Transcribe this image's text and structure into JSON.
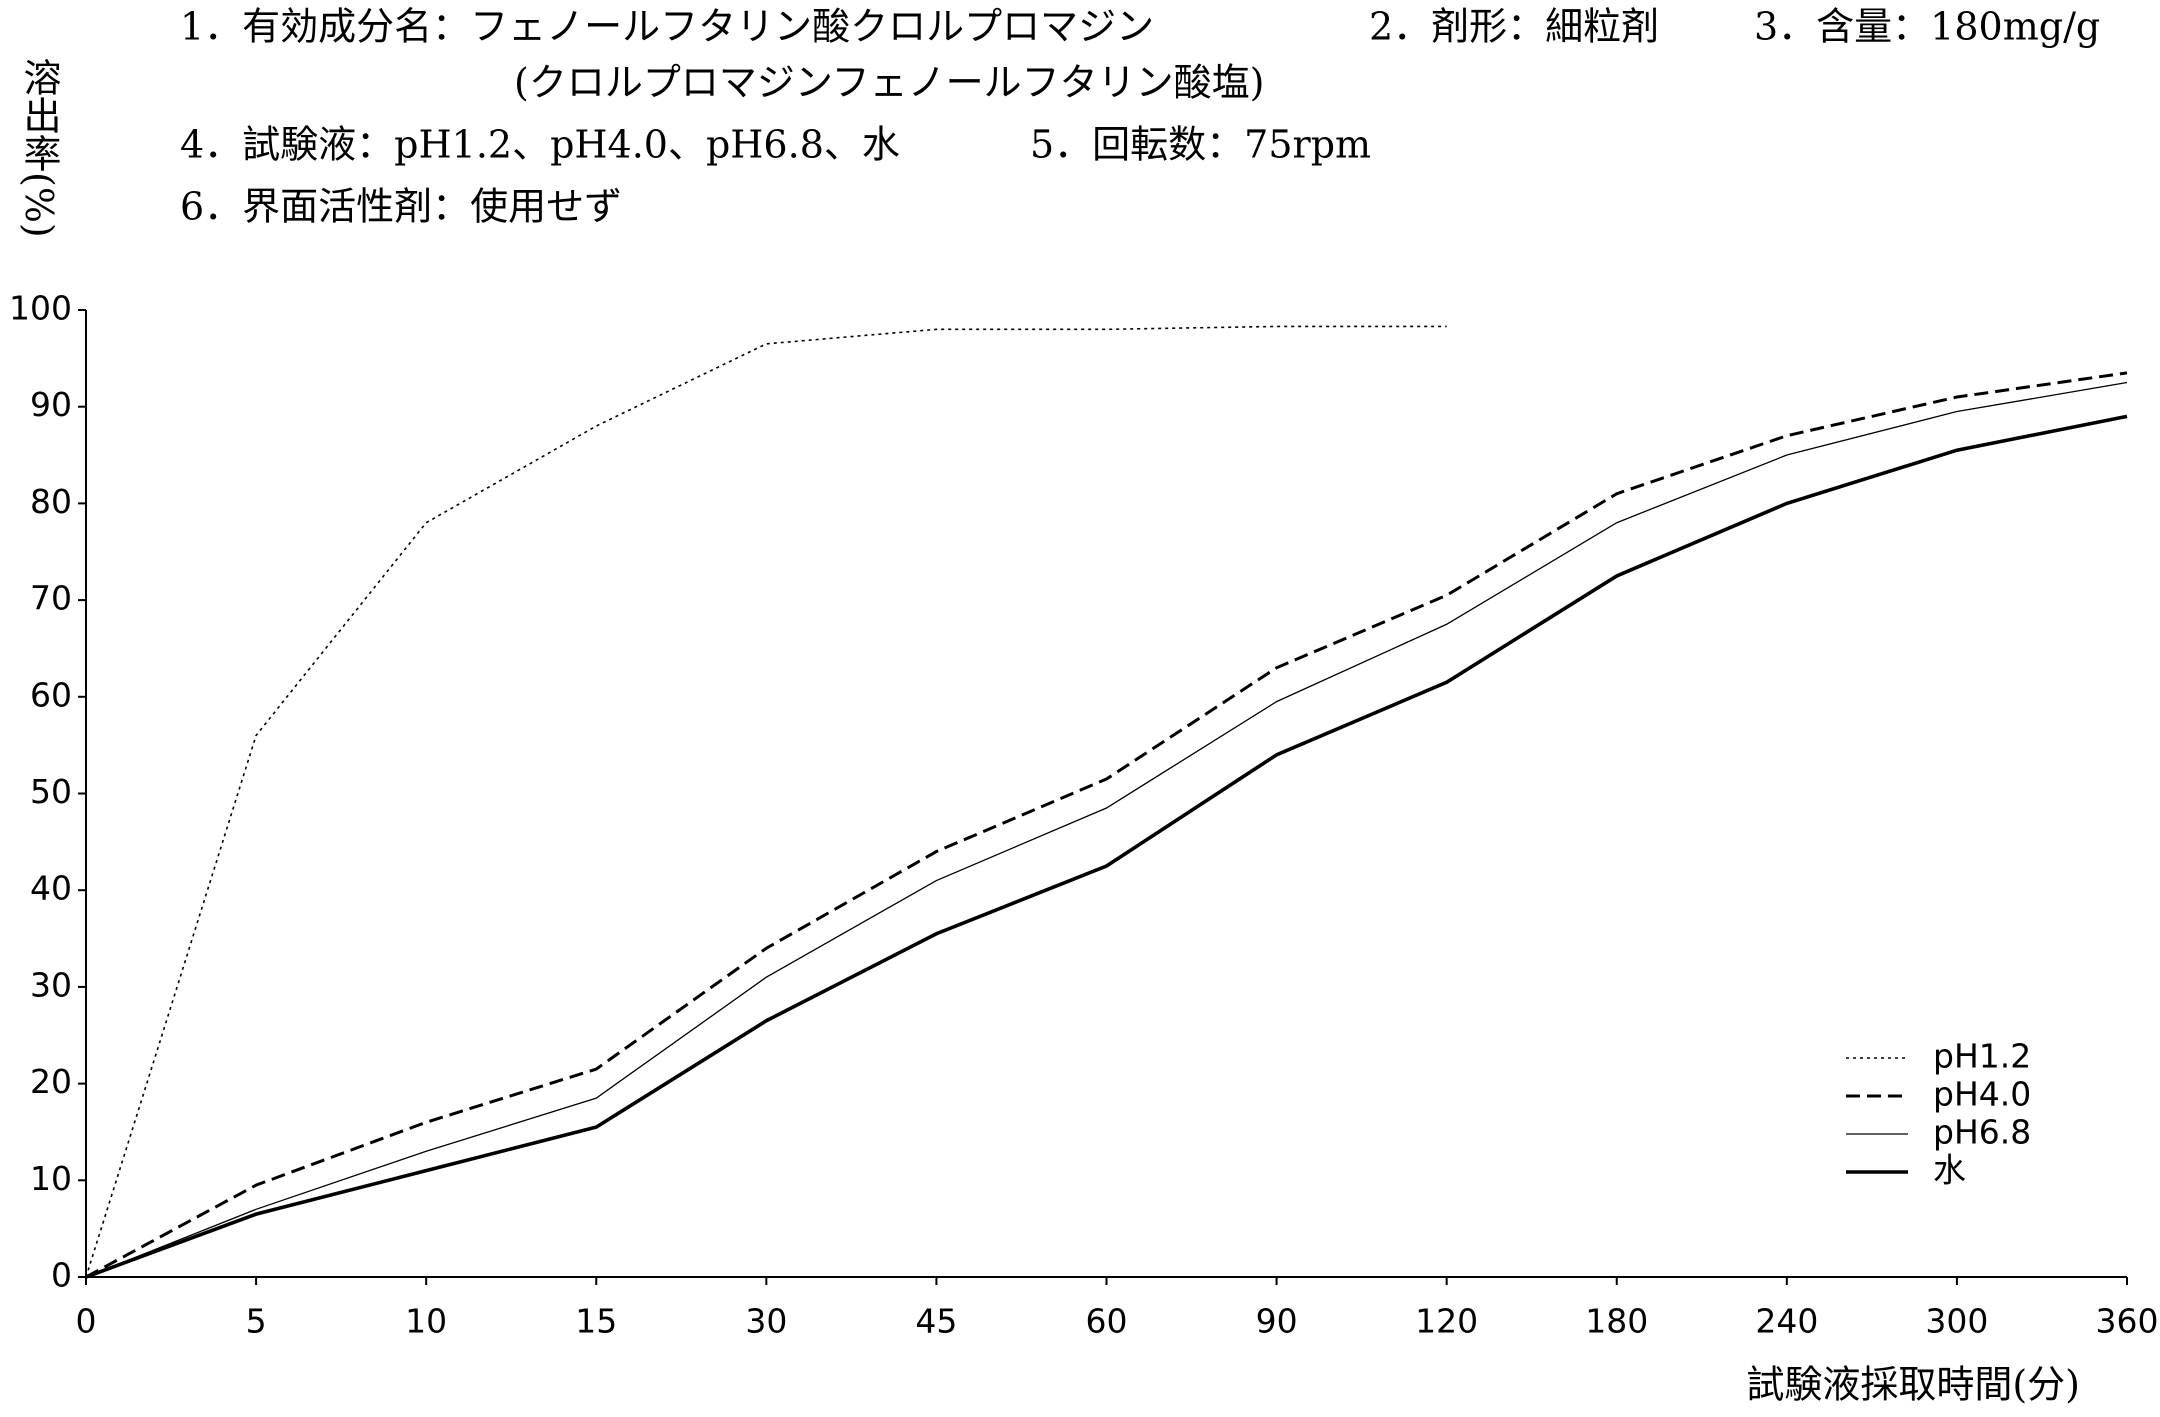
{
  "chart_data": {
    "type": "line",
    "header": [
      "1．有効成分名：フェノールフタリン酸クロルプロマジン",
      "(クロルプロマジンフェノールフタリン酸塩)",
      "2．剤形：細粒剤",
      "3．含量：180mg/g",
      "4．試験液：pH1.2、pH4.0、pH6.8、水",
      "5．回転数：75rpm",
      "6．界面活性剤：使用せず"
    ],
    "y_label": "溶出率(%)",
    "x_label": "試験液採取時間(分)",
    "categories": [
      "0",
      "5",
      "10",
      "15",
      "30",
      "45",
      "60",
      "90",
      "120",
      "180",
      "240",
      "300",
      "360"
    ],
    "series": [
      {
        "name": "pH1.2",
        "color": "#000000",
        "values": [
          0,
          56,
          78,
          88,
          96.5,
          98,
          98,
          98.3,
          98.3,
          null,
          null,
          null,
          null
        ]
      },
      {
        "name": "pH4.0",
        "color": "#000000",
        "values": [
          0,
          9.5,
          16,
          21.5,
          34,
          44,
          51.5,
          63,
          70.5,
          81,
          87,
          91,
          93.5
        ]
      },
      {
        "name": "pH6.8",
        "color": "#000000",
        "values": [
          0,
          7,
          13,
          18.5,
          31,
          41,
          48.5,
          59.5,
          67.5,
          78,
          85,
          89.5,
          92.5
        ]
      },
      {
        "name": "水",
        "color": "#000000",
        "values": [
          0,
          6.5,
          11,
          15.5,
          26.5,
          35.5,
          42.5,
          54,
          61.5,
          72.5,
          80,
          85.5,
          89
        ]
      }
    ],
    "ylim": [
      0,
      100
    ],
    "yticks": [
      0,
      10,
      20,
      30,
      40,
      50,
      60,
      70,
      80,
      90,
      100
    ],
    "legend": "lower right"
  }
}
